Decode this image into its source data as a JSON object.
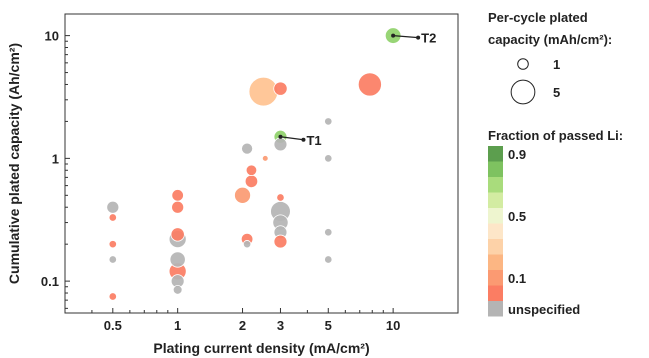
{
  "chart_data": {
    "type": "scatter",
    "title": "",
    "xlabel": "Plating current density (mA/cm²)",
    "ylabel": "Cumulative plated capacity (Ah/cm²)",
    "xscale": "log",
    "yscale": "log",
    "xlim": [
      0.3,
      20
    ],
    "ylim": [
      0.055,
      15
    ],
    "xticks": [
      {
        "v": 0.5,
        "label": "0.5"
      },
      {
        "v": 1,
        "label": "1"
      },
      {
        "v": 2,
        "label": "2"
      },
      {
        "v": 3,
        "label": "3"
      },
      {
        "v": 5,
        "label": "5"
      },
      {
        "v": 10,
        "label": "10"
      }
    ],
    "yticks": [
      {
        "v": 0.1,
        "label": "0.1"
      },
      {
        "v": 1,
        "label": "1"
      },
      {
        "v": 10,
        "label": "10"
      }
    ],
    "grid": false,
    "size_encoding": "per-cycle plated capacity (mAh/cm²)",
    "color_encoding": "fraction of passed Li",
    "points": [
      {
        "x": 10,
        "y": 10,
        "size": 2.2,
        "color": "#8fd16a"
      },
      {
        "x": 7.8,
        "y": 4.0,
        "size": 4.8,
        "color": "#fb7d63"
      },
      {
        "x": 2.5,
        "y": 3.5,
        "size": 7.4,
        "color": "#ffc290"
      },
      {
        "x": 3.0,
        "y": 3.7,
        "size": 1.6,
        "color": "#fb7d63"
      },
      {
        "x": 3.0,
        "y": 1.5,
        "size": 1.5,
        "color": "#8fd16a"
      },
      {
        "x": 3.0,
        "y": 1.3,
        "size": 1.5,
        "color": "#b4b4b4"
      },
      {
        "x": 2.1,
        "y": 1.2,
        "size": 1.1,
        "color": "#b4b4b4"
      },
      {
        "x": 2.55,
        "y": 1.0,
        "size": 0.3,
        "color": "#fb9a72"
      },
      {
        "x": 2.2,
        "y": 0.8,
        "size": 1.0,
        "color": "#fb7d63"
      },
      {
        "x": 2.2,
        "y": 0.65,
        "size": 1.4,
        "color": "#fb7d63"
      },
      {
        "x": 2.0,
        "y": 0.5,
        "size": 2.3,
        "color": "#fb9a72"
      },
      {
        "x": 2.1,
        "y": 0.22,
        "size": 1.2,
        "color": "#fb7d63"
      },
      {
        "x": 2.1,
        "y": 0.2,
        "size": 0.5,
        "color": "#b4b4b4"
      },
      {
        "x": 3.0,
        "y": 0.48,
        "size": 0.5,
        "color": "#fb7d63"
      },
      {
        "x": 3.0,
        "y": 0.37,
        "size": 3.5,
        "color": "#b4b4b4"
      },
      {
        "x": 3.0,
        "y": 0.3,
        "size": 2.1,
        "color": "#b4b4b4"
      },
      {
        "x": 3.0,
        "y": 0.25,
        "size": 1.5,
        "color": "#b4b4b4"
      },
      {
        "x": 3.0,
        "y": 0.21,
        "size": 1.5,
        "color": "#fb7d63"
      },
      {
        "x": 5.0,
        "y": 2.0,
        "size": 0.5,
        "color": "#b4b4b4"
      },
      {
        "x": 5.0,
        "y": 1.0,
        "size": 0.5,
        "color": "#b4b4b4"
      },
      {
        "x": 5.0,
        "y": 0.25,
        "size": 0.5,
        "color": "#b4b4b4"
      },
      {
        "x": 5.0,
        "y": 0.15,
        "size": 0.5,
        "color": "#b4b4b4"
      },
      {
        "x": 0.5,
        "y": 0.4,
        "size": 1.3,
        "color": "#b4b4b4"
      },
      {
        "x": 0.5,
        "y": 0.33,
        "size": 0.5,
        "color": "#fb7d63"
      },
      {
        "x": 0.5,
        "y": 0.2,
        "size": 0.5,
        "color": "#fb7d63"
      },
      {
        "x": 0.5,
        "y": 0.15,
        "size": 0.5,
        "color": "#b4b4b4"
      },
      {
        "x": 0.5,
        "y": 0.075,
        "size": 0.5,
        "color": "#fb7d63"
      },
      {
        "x": 1.0,
        "y": 0.5,
        "size": 1.2,
        "color": "#fb7d63"
      },
      {
        "x": 1.0,
        "y": 0.4,
        "size": 1.3,
        "color": "#fb7d63"
      },
      {
        "x": 1.0,
        "y": 0.24,
        "size": 1.6,
        "color": "#fb7d63"
      },
      {
        "x": 1.0,
        "y": 0.22,
        "size": 2.6,
        "color": "#b4b4b4"
      },
      {
        "x": 1.0,
        "y": 0.15,
        "size": 2.1,
        "color": "#b4b4b4"
      },
      {
        "x": 1.0,
        "y": 0.12,
        "size": 2.6,
        "color": "#fb7d63"
      },
      {
        "x": 1.0,
        "y": 0.1,
        "size": 1.5,
        "color": "#b4b4b4"
      },
      {
        "x": 1.0,
        "y": 0.085,
        "size": 0.7,
        "color": "#b4b4b4"
      }
    ],
    "annotations": [
      {
        "label": "T1",
        "x": 3.0,
        "y": 1.5
      },
      {
        "label": "T2",
        "x": 10,
        "y": 10
      }
    ],
    "legend_size": {
      "title_line1": "Per-cycle plated",
      "title_line2": "capacity (mAh/cm²):",
      "items": [
        {
          "value": 1,
          "label": "1"
        },
        {
          "value": 5,
          "label": "5"
        }
      ]
    },
    "legend_color": {
      "title": "Fraction of passed Li:",
      "swatches": [
        {
          "color": "#5c9e4e",
          "label": "0.9"
        },
        {
          "color": "#7ec260",
          "label": ""
        },
        {
          "color": "#a9dc7c",
          "label": ""
        },
        {
          "color": "#d3eca2",
          "label": ""
        },
        {
          "color": "#eef5cf",
          "label": "0.5"
        },
        {
          "color": "#fde6c8",
          "label": ""
        },
        {
          "color": "#fdd2a8",
          "label": ""
        },
        {
          "color": "#fcb683",
          "label": ""
        },
        {
          "color": "#fb9a72",
          "label": "0.1"
        },
        {
          "color": "#fb7d63",
          "label": ""
        },
        {
          "color": "#b4b4b4",
          "label": "unspecified"
        }
      ]
    }
  }
}
